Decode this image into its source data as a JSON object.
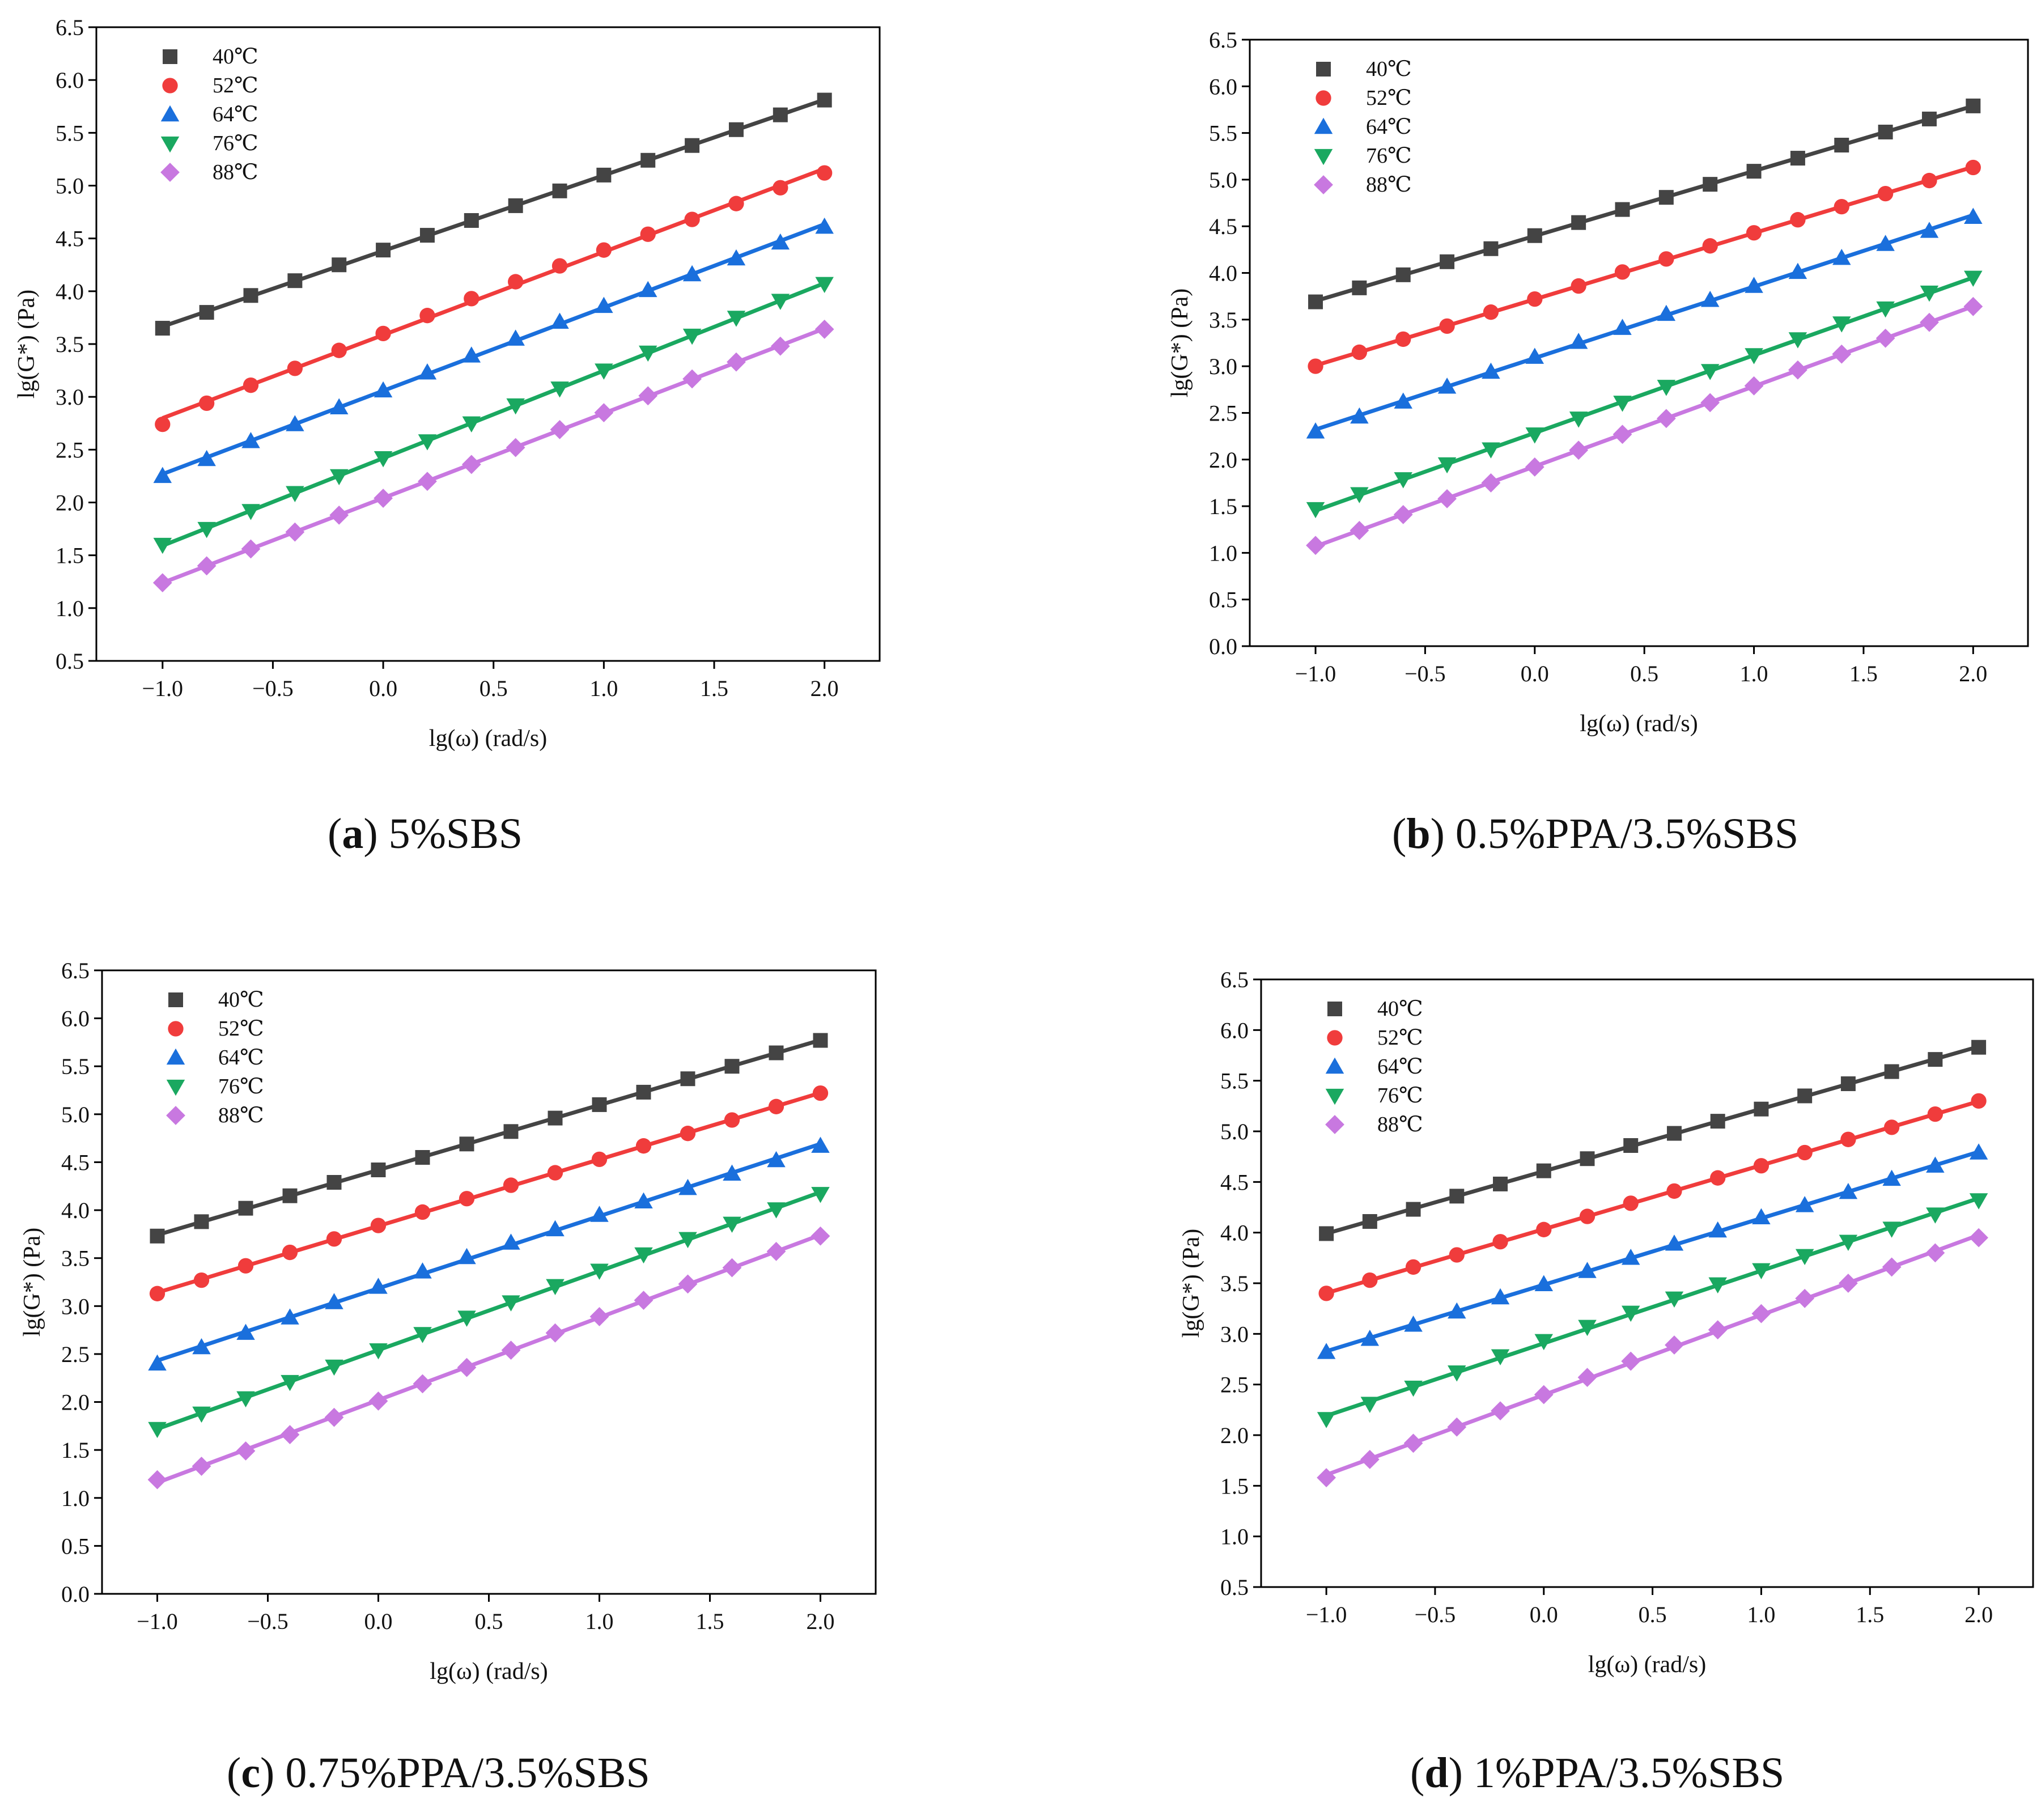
{
  "figure": {
    "captions": [
      {
        "letter": "a",
        "text": "5%SBS"
      },
      {
        "letter": "b",
        "text": "0.5%PPA/3.5%SBS"
      },
      {
        "letter": "c",
        "text": "0.75%PPA/3.5%SBS"
      },
      {
        "letter": "d",
        "text": "1%PPA/3.5%SBS"
      }
    ]
  },
  "colors": {
    "40": "#444444",
    "52": "#f03c3c",
    "64": "#1a6fdc",
    "76": "#1aa860",
    "88": "#c878e0"
  },
  "chart_data": [
    {
      "type": "scatter",
      "panel": "a",
      "title": "5%SBS",
      "xlabel": "lg(ω) (rad/s)",
      "ylabel": "lg(G*) (Pa)",
      "xlim": [
        -1.3,
        2.25
      ],
      "ylim": [
        0.5,
        6.5
      ],
      "xticks": [
        "−1.0",
        "−0.5",
        "0.0",
        "0.5",
        "1.0",
        "1.5",
        "2.0"
      ],
      "yticks": [
        "0.5",
        "1.0",
        "1.5",
        "2.0",
        "2.5",
        "3.0",
        "3.5",
        "4.0",
        "4.5",
        "5.0",
        "5.5",
        "6.0",
        "6.5"
      ],
      "legend_position": "top-left",
      "x": [
        -1.0,
        -0.8,
        -0.6,
        -0.4,
        -0.2,
        0.0,
        0.2,
        0.4,
        0.6,
        0.8,
        1.0,
        1.2,
        1.4,
        1.6,
        1.8,
        2.0
      ],
      "series": [
        {
          "name": "40℃",
          "key": "40",
          "marker": "square",
          "values": [
            3.65,
            3.8,
            3.96,
            4.1,
            4.25,
            4.39,
            4.53,
            4.67,
            4.81,
            4.95,
            5.1,
            5.24,
            5.38,
            5.53,
            5.67,
            5.81
          ]
        },
        {
          "name": "52℃",
          "key": "52",
          "marker": "circle",
          "values": [
            2.74,
            2.94,
            3.11,
            3.27,
            3.44,
            3.6,
            3.77,
            3.93,
            4.09,
            4.24,
            4.39,
            4.54,
            4.68,
            4.83,
            4.98,
            5.12
          ]
        },
        {
          "name": "64℃",
          "key": "64",
          "marker": "triangle-up",
          "values": [
            2.25,
            2.41,
            2.58,
            2.74,
            2.9,
            3.06,
            3.23,
            3.39,
            3.55,
            3.71,
            3.86,
            4.01,
            4.16,
            4.31,
            4.46,
            4.61
          ]
        },
        {
          "name": "76℃",
          "key": "76",
          "marker": "triangle-down",
          "values": [
            1.6,
            1.75,
            1.92,
            2.09,
            2.25,
            2.42,
            2.58,
            2.75,
            2.92,
            3.08,
            3.25,
            3.42,
            3.58,
            3.75,
            3.91,
            4.07
          ]
        },
        {
          "name": "88℃",
          "key": "88",
          "marker": "diamond",
          "values": [
            1.24,
            1.4,
            1.56,
            1.72,
            1.88,
            2.04,
            2.2,
            2.36,
            2.52,
            2.69,
            2.85,
            3.01,
            3.17,
            3.33,
            3.48,
            3.64
          ]
        }
      ]
    },
    {
      "type": "scatter",
      "panel": "b",
      "title": "0.5%PPA/3.5%SBS",
      "xlabel": "lg(ω) (rad/s)",
      "ylabel": "lg(G*) (Pa)",
      "xlim": [
        -1.3,
        2.25
      ],
      "ylim": [
        0.0,
        6.5
      ],
      "xticks": [
        "−1.0",
        "−0.5",
        "0.0",
        "0.5",
        "1.0",
        "1.5",
        "2.0"
      ],
      "yticks": [
        "0.0",
        "0.5",
        "1.0",
        "1.5",
        "2.0",
        "2.5",
        "3.0",
        "3.5",
        "4.0",
        "4.5",
        "5.0",
        "5.5",
        "6.0",
        "6.5"
      ],
      "legend_position": "top-left",
      "x": [
        -1.0,
        -0.8,
        -0.6,
        -0.4,
        -0.2,
        0.0,
        0.2,
        0.4,
        0.6,
        0.8,
        1.0,
        1.2,
        1.4,
        1.6,
        1.8,
        2.0
      ],
      "series": [
        {
          "name": "40℃",
          "key": "40",
          "marker": "square",
          "values": [
            3.69,
            3.84,
            3.98,
            4.12,
            4.26,
            4.4,
            4.54,
            4.68,
            4.81,
            4.95,
            5.09,
            5.23,
            5.37,
            5.51,
            5.65,
            5.79
          ]
        },
        {
          "name": "52℃",
          "key": "52",
          "marker": "circle",
          "values": [
            3.0,
            3.15,
            3.29,
            3.43,
            3.58,
            3.72,
            3.86,
            4.01,
            4.15,
            4.29,
            4.43,
            4.57,
            4.71,
            4.85,
            4.99,
            5.13
          ]
        },
        {
          "name": "64℃",
          "key": "64",
          "marker": "triangle-up",
          "values": [
            2.3,
            2.46,
            2.62,
            2.78,
            2.94,
            3.1,
            3.26,
            3.41,
            3.56,
            3.71,
            3.86,
            4.01,
            4.16,
            4.31,
            4.45,
            4.6
          ]
        },
        {
          "name": "76℃",
          "key": "76",
          "marker": "triangle-down",
          "values": [
            1.47,
            1.63,
            1.79,
            1.95,
            2.11,
            2.27,
            2.44,
            2.61,
            2.78,
            2.95,
            3.12,
            3.29,
            3.46,
            3.62,
            3.79,
            3.95
          ]
        },
        {
          "name": "88℃",
          "key": "88",
          "marker": "diamond",
          "values": [
            1.08,
            1.24,
            1.41,
            1.58,
            1.75,
            1.92,
            2.1,
            2.27,
            2.44,
            2.61,
            2.79,
            2.96,
            3.13,
            3.3,
            3.47,
            3.64
          ]
        }
      ]
    },
    {
      "type": "scatter",
      "panel": "c",
      "title": "0.75%PPA/3.5%SBS",
      "xlabel": "lg(ω) (rad/s)",
      "ylabel": "lg(G*) (Pa)",
      "xlim": [
        -1.25,
        2.25
      ],
      "ylim": [
        0.0,
        6.5
      ],
      "xticks": [
        "−1.0",
        "−0.5",
        "0.0",
        "0.5",
        "1.0",
        "1.5",
        "2.0"
      ],
      "yticks": [
        "0.0",
        "0.5",
        "1.0",
        "1.5",
        "2.0",
        "2.5",
        "3.0",
        "3.5",
        "4.0",
        "4.5",
        "5.0",
        "5.5",
        "6.0",
        "6.5"
      ],
      "legend_position": "top-left",
      "x": [
        -1.0,
        -0.8,
        -0.6,
        -0.4,
        -0.2,
        0.0,
        0.2,
        0.4,
        0.6,
        0.8,
        1.0,
        1.2,
        1.4,
        1.6,
        1.8,
        2.0
      ],
      "series": [
        {
          "name": "40℃",
          "key": "40",
          "marker": "square",
          "values": [
            3.73,
            3.88,
            4.02,
            4.15,
            4.29,
            4.42,
            4.55,
            4.69,
            4.82,
            4.96,
            5.1,
            5.23,
            5.37,
            5.5,
            5.64,
            5.77
          ]
        },
        {
          "name": "52℃",
          "key": "52",
          "marker": "circle",
          "values": [
            3.13,
            3.27,
            3.42,
            3.56,
            3.7,
            3.84,
            3.98,
            4.12,
            4.26,
            4.39,
            4.53,
            4.67,
            4.8,
            4.94,
            5.08,
            5.22
          ]
        },
        {
          "name": "64℃",
          "key": "64",
          "marker": "triangle-up",
          "values": [
            2.4,
            2.57,
            2.72,
            2.88,
            3.04,
            3.2,
            3.36,
            3.51,
            3.66,
            3.8,
            3.95,
            4.09,
            4.23,
            4.38,
            4.52,
            4.67
          ]
        },
        {
          "name": "76℃",
          "key": "76",
          "marker": "triangle-down",
          "values": [
            1.72,
            1.88,
            2.04,
            2.21,
            2.37,
            2.54,
            2.71,
            2.88,
            3.04,
            3.21,
            3.37,
            3.54,
            3.7,
            3.86,
            4.01,
            4.17
          ]
        },
        {
          "name": "88℃",
          "key": "88",
          "marker": "diamond",
          "values": [
            1.19,
            1.33,
            1.49,
            1.66,
            1.84,
            2.01,
            2.19,
            2.36,
            2.54,
            2.72,
            2.89,
            3.06,
            3.23,
            3.4,
            3.57,
            3.73
          ]
        }
      ]
    },
    {
      "type": "scatter",
      "panel": "d",
      "title": "1%PPA/3.5%SBS",
      "xlabel": "lg(ω) (rad/s)",
      "ylabel": "lg(G*) (Pa)",
      "xlim": [
        -1.3,
        2.25
      ],
      "ylim": [
        0.5,
        6.5
      ],
      "xticks": [
        "−1.0",
        "−0.5",
        "0.0",
        "0.5",
        "1.0",
        "1.5",
        "2.0"
      ],
      "yticks": [
        "0.5",
        "1.0",
        "1.5",
        "2.0",
        "2.5",
        "3.0",
        "3.5",
        "4.0",
        "4.5",
        "5.0",
        "5.5",
        "6.0",
        "6.5"
      ],
      "legend_position": "top-left",
      "x": [
        -1.0,
        -0.8,
        -0.6,
        -0.4,
        -0.2,
        0.0,
        0.2,
        0.4,
        0.6,
        0.8,
        1.0,
        1.2,
        1.4,
        1.6,
        1.8,
        2.0
      ],
      "series": [
        {
          "name": "40℃",
          "key": "40",
          "marker": "square",
          "values": [
            3.99,
            4.11,
            4.23,
            4.36,
            4.48,
            4.61,
            4.73,
            4.86,
            4.98,
            5.1,
            5.22,
            5.35,
            5.47,
            5.59,
            5.71,
            5.83
          ]
        },
        {
          "name": "52℃",
          "key": "52",
          "marker": "circle",
          "values": [
            3.4,
            3.53,
            3.66,
            3.78,
            3.91,
            4.03,
            4.16,
            4.29,
            4.41,
            4.54,
            4.66,
            4.79,
            4.92,
            5.04,
            5.17,
            5.3
          ]
        },
        {
          "name": "64℃",
          "key": "64",
          "marker": "triangle-up",
          "values": [
            2.82,
            2.95,
            3.09,
            3.22,
            3.36,
            3.49,
            3.62,
            3.75,
            3.89,
            4.02,
            4.15,
            4.27,
            4.4,
            4.53,
            4.66,
            4.79
          ]
        },
        {
          "name": "76℃",
          "key": "76",
          "marker": "triangle-down",
          "values": [
            2.16,
            2.31,
            2.47,
            2.62,
            2.78,
            2.93,
            3.07,
            3.21,
            3.35,
            3.49,
            3.63,
            3.77,
            3.91,
            4.04,
            4.18,
            4.32
          ]
        },
        {
          "name": "88℃",
          "key": "88",
          "marker": "diamond",
          "values": [
            1.58,
            1.76,
            1.92,
            2.08,
            2.24,
            2.4,
            2.57,
            2.73,
            2.89,
            3.04,
            3.2,
            3.35,
            3.5,
            3.66,
            3.8,
            3.95
          ]
        }
      ]
    }
  ]
}
